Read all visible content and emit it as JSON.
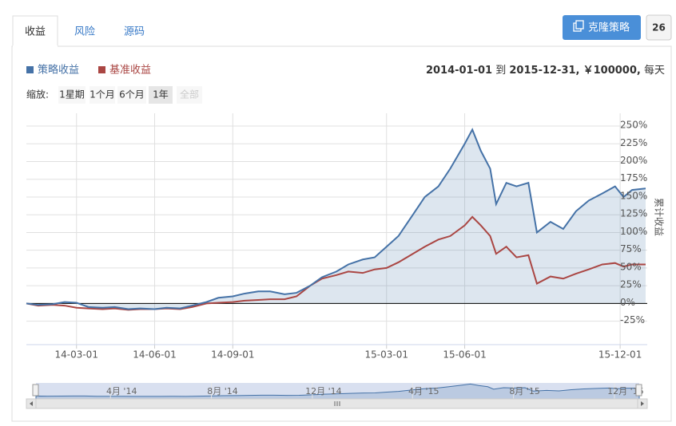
{
  "tabs": [
    "收益",
    "风险",
    "源码"
  ],
  "clone_button": "克隆策略",
  "clone_count": 26,
  "header": {
    "start": "2014-01-01",
    "sep": "到",
    "end": "2015-12-31,",
    "capital": "￥100000,",
    "frequency": "每天"
  },
  "zoom": {
    "label": "缩放:",
    "buttons": [
      "1星期",
      "1个月",
      "6个月",
      "1年",
      "全部"
    ]
  },
  "chart_data": {
    "type": "line",
    "y_axis_label": "累计收益",
    "x": [
      "2014-01-01",
      "2014-01-15",
      "2014-02-01",
      "2014-02-15",
      "2014-03-01",
      "2014-03-15",
      "2014-04-01",
      "2014-04-15",
      "2014-05-01",
      "2014-05-15",
      "2014-06-01",
      "2014-06-15",
      "2014-07-01",
      "2014-07-15",
      "2014-08-01",
      "2014-08-15",
      "2014-09-01",
      "2014-09-15",
      "2014-10-01",
      "2014-10-15",
      "2014-11-01",
      "2014-11-15",
      "2014-12-01",
      "2014-12-15",
      "2015-01-01",
      "2015-01-15",
      "2015-02-01",
      "2015-02-15",
      "2015-03-01",
      "2015-03-15",
      "2015-04-01",
      "2015-04-15",
      "2015-05-01",
      "2015-05-15",
      "2015-06-01",
      "2015-06-10",
      "2015-06-20",
      "2015-07-01",
      "2015-07-08",
      "2015-07-20",
      "2015-08-01",
      "2015-08-15",
      "2015-08-25",
      "2015-09-10",
      "2015-09-25",
      "2015-10-10",
      "2015-10-25",
      "2015-11-10",
      "2015-11-25",
      "2015-12-05",
      "2015-12-15",
      "2015-12-31"
    ],
    "series": [
      {
        "name": "策略收益",
        "color": "#4572a7",
        "values": [
          0,
          -2,
          -1,
          2,
          1,
          -5,
          -6,
          -5,
          -8,
          -7,
          -8,
          -6,
          -7,
          -3,
          2,
          8,
          10,
          14,
          17,
          17,
          13,
          15,
          25,
          37,
          45,
          55,
          62,
          65,
          80,
          95,
          125,
          150,
          165,
          190,
          225,
          245,
          215,
          190,
          140,
          170,
          165,
          170,
          100,
          115,
          105,
          130,
          145,
          155,
          165,
          150,
          160,
          162
        ]
      },
      {
        "name": "基准收益",
        "color": "#aa4643",
        "values": [
          0,
          -3,
          -2,
          -3,
          -6,
          -7,
          -8,
          -7,
          -9,
          -8,
          -8,
          -7,
          -8,
          -5,
          0,
          1,
          2,
          4,
          5,
          6,
          6,
          10,
          25,
          35,
          40,
          45,
          43,
          48,
          50,
          58,
          70,
          80,
          90,
          95,
          110,
          122,
          110,
          95,
          70,
          80,
          65,
          68,
          28,
          38,
          35,
          42,
          48,
          55,
          57,
          52,
          55,
          55
        ]
      }
    ],
    "xlim": [
      "2014-01-01",
      "2015-12-31"
    ],
    "xticks": [
      {
        "value": "2014-03-01",
        "label": "14-03-01"
      },
      {
        "value": "2014-06-01",
        "label": "14-06-01"
      },
      {
        "value": "2014-09-01",
        "label": "14-09-01"
      },
      {
        "value": "2015-03-01",
        "label": "15-03-01"
      },
      {
        "value": "2015-06-01",
        "label": "15-06-01"
      },
      {
        "value": "2015-12-01",
        "label": "15-12-01"
      }
    ],
    "ylim": [
      -58,
      268
    ],
    "yticks": [
      {
        "value": -25,
        "label": "-25%"
      },
      {
        "value": 0,
        "label": "0%"
      },
      {
        "value": 25,
        "label": "25%"
      },
      {
        "value": 50,
        "label": "50%"
      },
      {
        "value": 75,
        "label": "75%"
      },
      {
        "value": 100,
        "label": "100%"
      },
      {
        "value": 125,
        "label": "125%"
      },
      {
        "value": 150,
        "label": "150%"
      },
      {
        "value": 175,
        "label": "175%"
      },
      {
        "value": 200,
        "label": "200%"
      },
      {
        "value": 225,
        "label": "225%"
      },
      {
        "value": 250,
        "label": "250%"
      }
    ],
    "grid": true,
    "navigator_ticks": [
      {
        "value": "2014-04-01",
        "label": "4月 '14"
      },
      {
        "value": "2014-08-01",
        "label": "8月 '14"
      },
      {
        "value": "2014-12-01",
        "label": "12月 '14"
      },
      {
        "value": "2015-04-01",
        "label": "4月 '15"
      },
      {
        "value": "2015-08-01",
        "label": "8月 '15"
      },
      {
        "value": "2015-12-01",
        "label": "12月 '15"
      }
    ]
  }
}
